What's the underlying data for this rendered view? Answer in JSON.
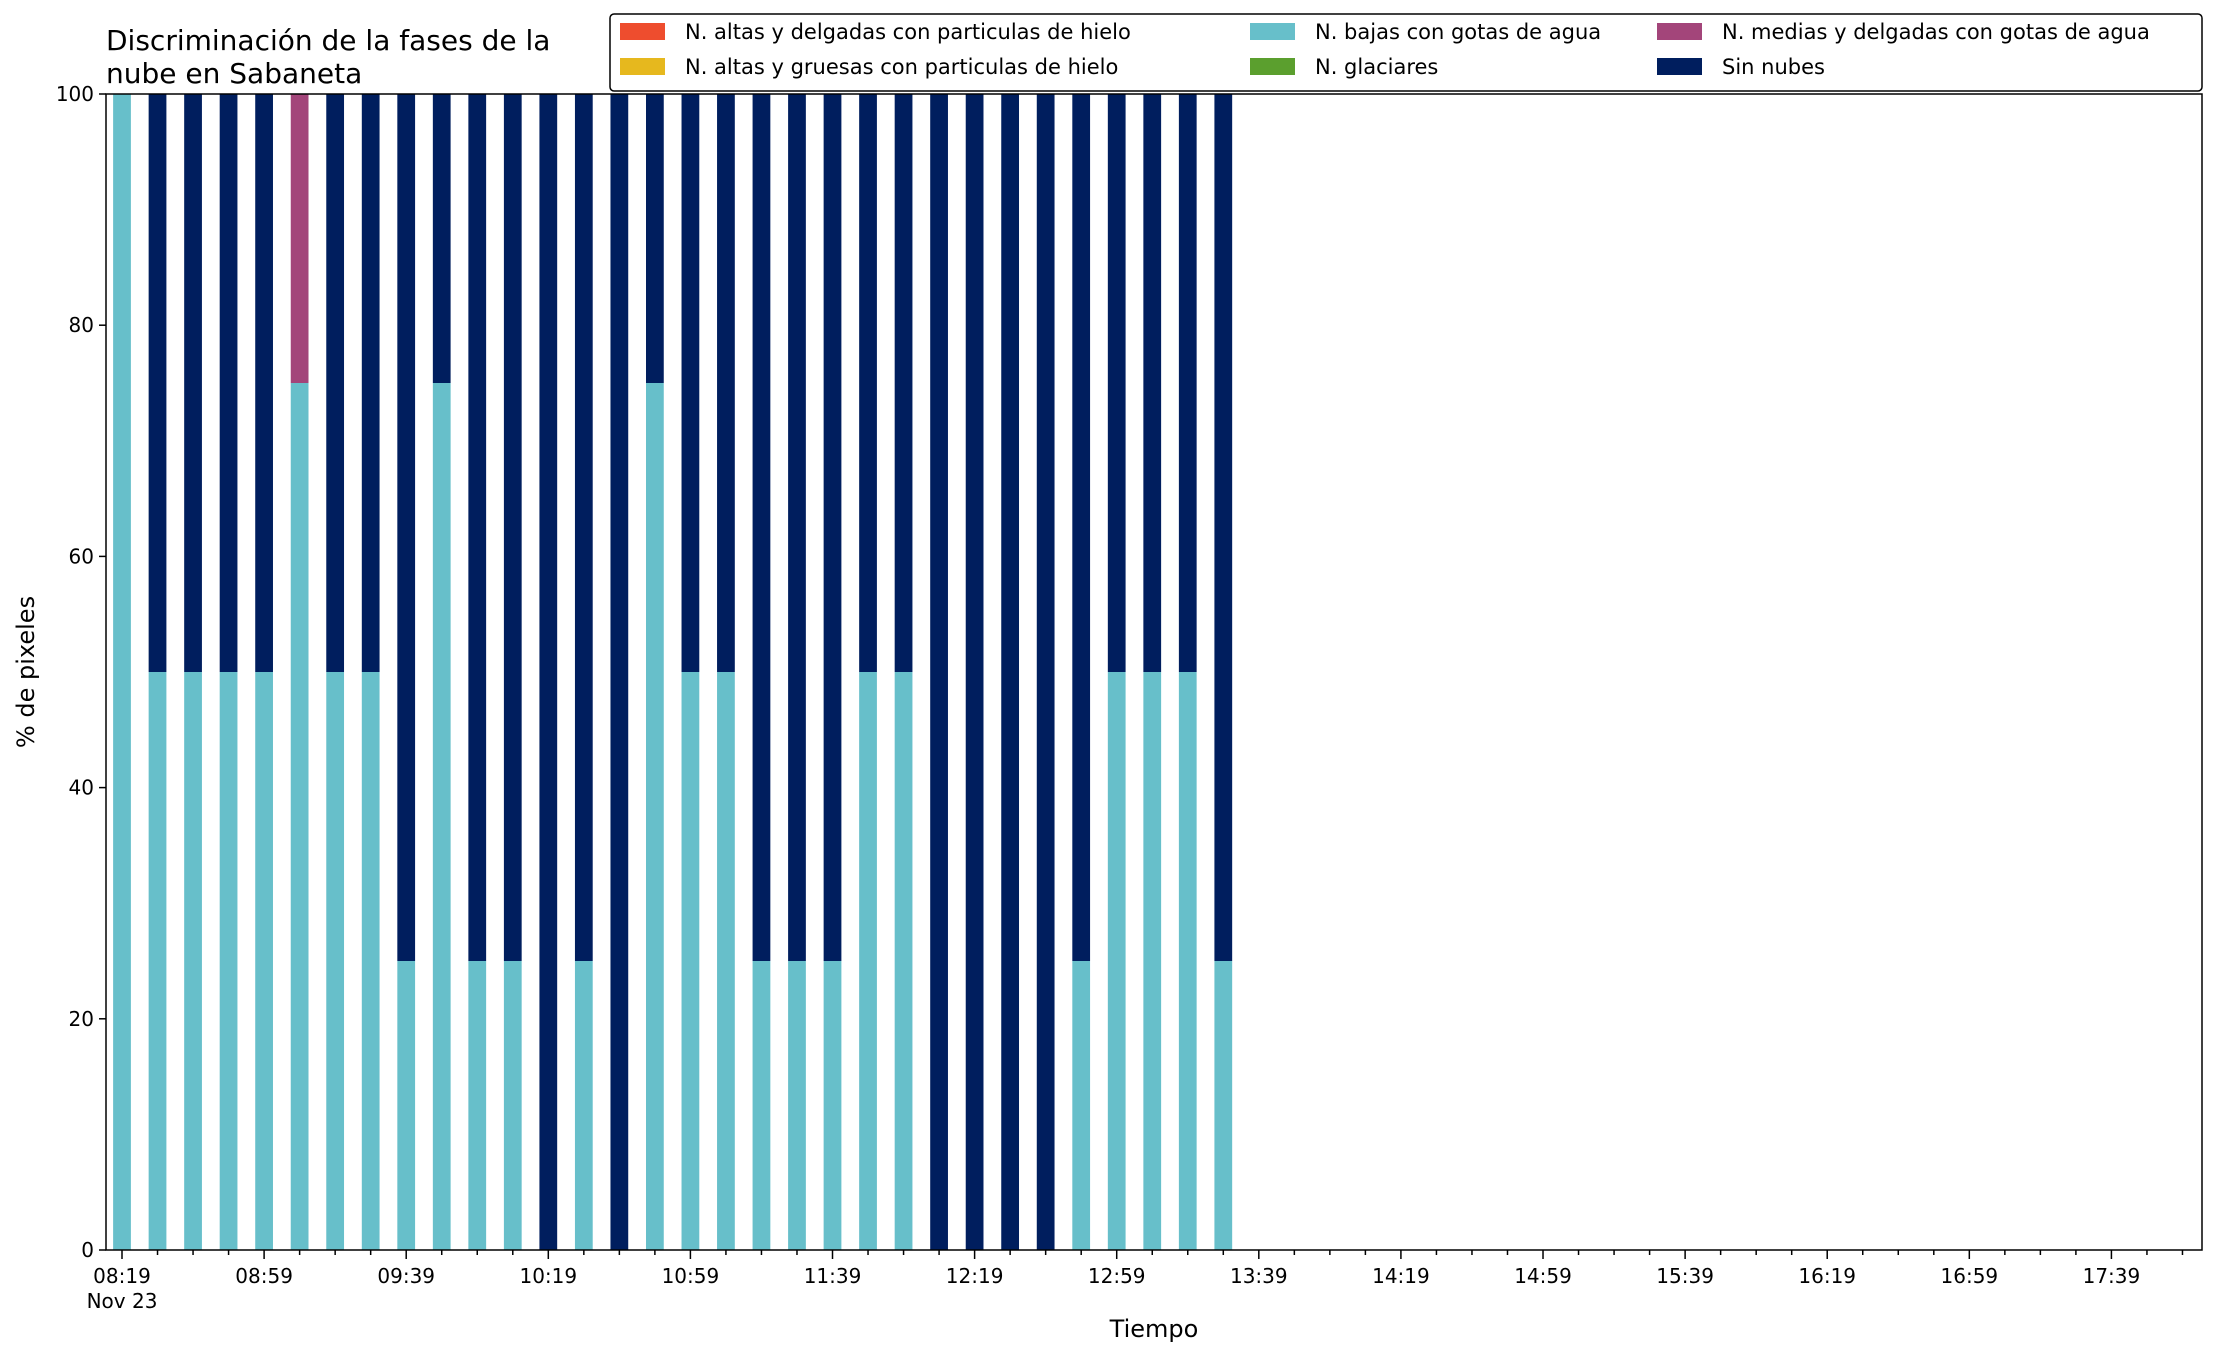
{
  "chart_data": {
    "type": "bar",
    "stacked": true,
    "title": "Discriminación de la fases de la nube en Sabaneta",
    "title_lines": [
      "Discriminación de la fases de la",
      "nube en Sabaneta"
    ],
    "xlabel": "Tiempo",
    "ylabel": "% de pixeles",
    "ylim": [
      0,
      100
    ],
    "yticks": [
      0,
      20,
      40,
      60,
      80,
      100
    ],
    "x_date_label": "Nov 23",
    "xtick_labels": [
      "08:19",
      "08:59",
      "09:39",
      "10:19",
      "10:59",
      "11:39",
      "12:19",
      "12:59",
      "13:39",
      "14:19",
      "14:59",
      "15:39",
      "16:19",
      "16:59",
      "17:39"
    ],
    "x_slots_total": 59,
    "categories": [
      "08:19",
      "08:29",
      "08:39",
      "08:49",
      "08:59",
      "09:09",
      "09:19",
      "09:29",
      "09:39",
      "09:49",
      "09:59",
      "10:09",
      "10:19",
      "10:29",
      "10:39",
      "10:49",
      "10:59",
      "11:09",
      "11:19",
      "11:29",
      "11:39",
      "11:49",
      "11:59",
      "12:09",
      "12:19",
      "12:29",
      "12:39",
      "12:49",
      "12:59",
      "13:09",
      "13:19",
      "13:29"
    ],
    "legend_placement": "top-right",
    "grid": false,
    "series": [
      {
        "name": "N. altas y delgadas con particulas de hielo",
        "color": "#ee4d2e",
        "values": [
          0,
          0,
          0,
          0,
          0,
          0,
          0,
          0,
          0,
          0,
          0,
          0,
          0,
          0,
          0,
          0,
          0,
          0,
          0,
          0,
          0,
          0,
          0,
          0,
          0,
          0,
          0,
          0,
          0,
          0,
          0,
          0
        ]
      },
      {
        "name": "N. altas y gruesas con particulas de hielo",
        "color": "#e6b81e",
        "values": [
          0,
          0,
          0,
          0,
          0,
          0,
          0,
          0,
          0,
          0,
          0,
          0,
          0,
          0,
          0,
          0,
          0,
          0,
          0,
          0,
          0,
          0,
          0,
          0,
          0,
          0,
          0,
          0,
          0,
          0,
          0,
          0
        ]
      },
      {
        "name": "N. bajas con gotas de agua",
        "color": "#67bfca",
        "values": [
          100,
          50,
          50,
          50,
          50,
          75,
          50,
          50,
          25,
          75,
          25,
          25,
          0,
          25,
          0,
          75,
          50,
          50,
          25,
          25,
          25,
          50,
          50,
          0,
          0,
          0,
          0,
          25,
          50,
          50,
          50,
          25
        ]
      },
      {
        "name": "N. glaciares",
        "color": "#5b9f2e",
        "values": [
          0,
          0,
          0,
          0,
          0,
          0,
          0,
          0,
          0,
          0,
          0,
          0,
          0,
          0,
          0,
          0,
          0,
          0,
          0,
          0,
          0,
          0,
          0,
          0,
          0,
          0,
          0,
          0,
          0,
          0,
          0,
          0
        ]
      },
      {
        "name": "N. medias y delgadas con gotas de agua",
        "color": "#a3457a",
        "values": [
          0,
          0,
          0,
          0,
          0,
          25,
          0,
          0,
          0,
          0,
          0,
          0,
          0,
          0,
          0,
          0,
          0,
          0,
          0,
          0,
          0,
          0,
          0,
          0,
          0,
          0,
          0,
          0,
          0,
          0,
          0,
          0
        ]
      },
      {
        "name": "Sin nubes",
        "color": "#001e5e",
        "values": [
          0,
          50,
          50,
          50,
          50,
          0,
          50,
          50,
          75,
          25,
          75,
          75,
          100,
          75,
          100,
          25,
          50,
          50,
          75,
          75,
          75,
          50,
          50,
          100,
          100,
          100,
          100,
          75,
          50,
          50,
          50,
          75
        ]
      }
    ]
  }
}
